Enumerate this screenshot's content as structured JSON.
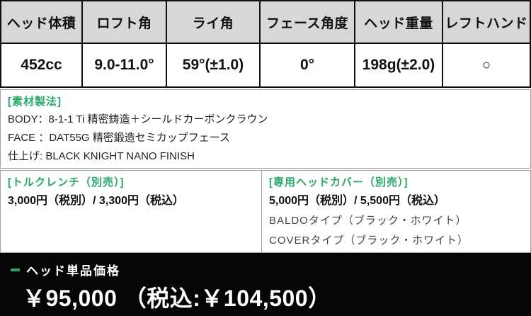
{
  "spec_table": {
    "columns": [
      {
        "header": "ヘッド体積",
        "value": "452cc"
      },
      {
        "header": "ロフト角",
        "value": "9.0-11.0°"
      },
      {
        "header": "ライ角",
        "value": "59°(±1.0)"
      },
      {
        "header": "フェース角度",
        "value": "0°"
      },
      {
        "header": "ヘッド重量",
        "value": "198g(±2.0)"
      },
      {
        "header": "レフトハンド",
        "value": "○"
      }
    ]
  },
  "materials": {
    "title": "[素材製法]",
    "lines": [
      "BODY：8-1-1 Ti 精密鋳造＋シールドカーボンクラウン",
      "FACE ：DAT55G 精密鍛造セミカップフェース",
      "仕上げ: BLACK KNIGHT NANO FINISH"
    ]
  },
  "options": {
    "torque_wrench": {
      "title": "[トルクレンチ（別売）]",
      "price": "3,000円（税別）/ 3,300円（税込）"
    },
    "head_cover": {
      "title": "[専用ヘッドカバー（別売）]",
      "price": "5,000円（税別）/ 5,500円（税込）",
      "types": [
        "BALDOタイプ（ブラック・ホワイト）",
        "COVERタイプ（ブラック・ホワイト）"
      ]
    }
  },
  "price_bar": {
    "label": "ヘッド単品価格",
    "price": "￥95,000 （税込:￥104,500）"
  },
  "colors": {
    "accent_green": "#27a864",
    "header_bg": "#d7d7d7",
    "bar_bg": "#050505"
  }
}
